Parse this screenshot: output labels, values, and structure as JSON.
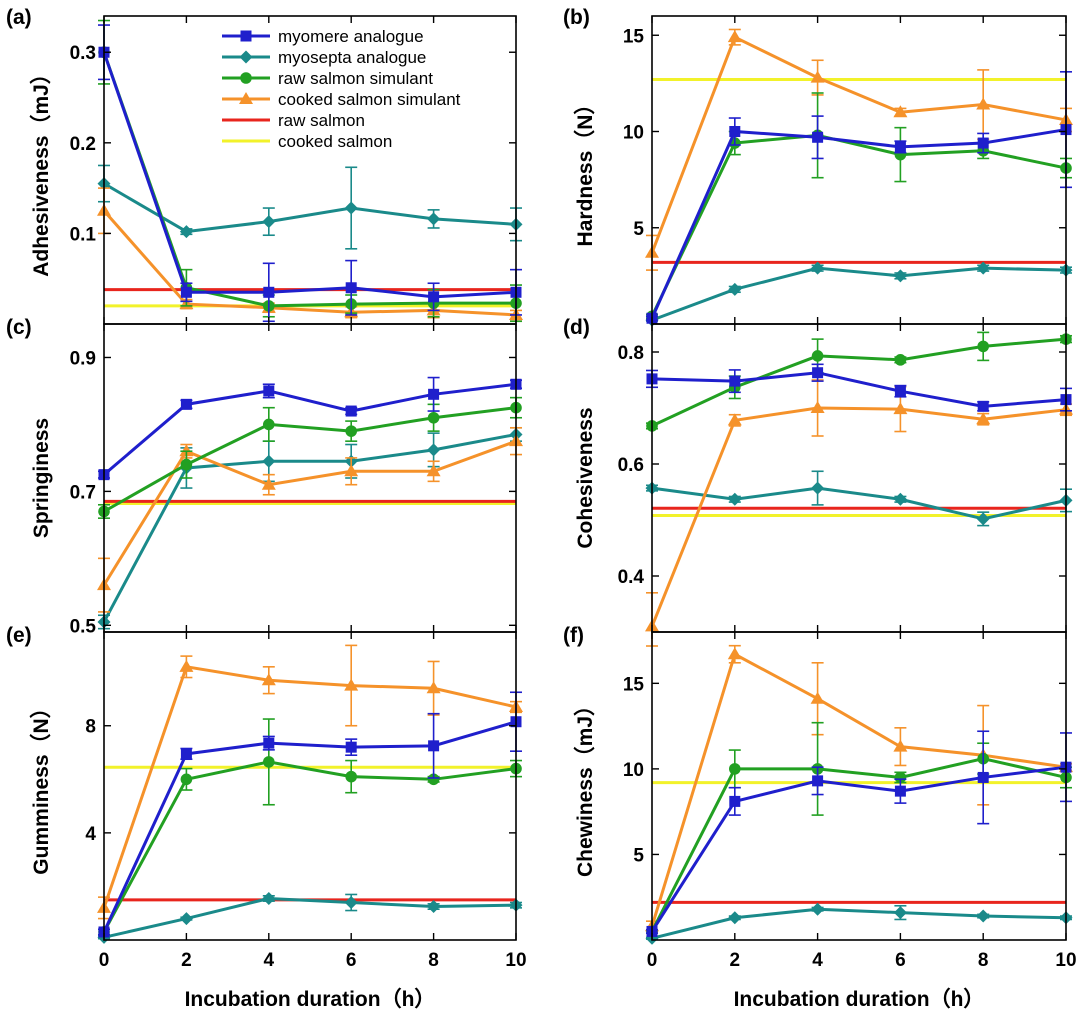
{
  "chart_data": {
    "type": "line",
    "x": [
      0,
      2,
      4,
      6,
      8,
      10
    ],
    "xlabel": "Incubation duration（h）",
    "xticks": [
      "0",
      "2",
      "4",
      "6",
      "8",
      "10"
    ],
    "legend": [
      {
        "name": "myomere analogue",
        "color": "#1f1fcc",
        "marker": "square"
      },
      {
        "name": "myosepta analogue",
        "color": "#1a8a8a",
        "marker": "diamond"
      },
      {
        "name": "raw salmon simulant",
        "color": "#22a022",
        "marker": "circle"
      },
      {
        "name": "cooked salmon simulant",
        "color": "#f5922a",
        "marker": "triangle"
      },
      {
        "name": "raw salmon",
        "color": "#e8251d",
        "marker": "line"
      },
      {
        "name": "cooked salmon",
        "color": "#f2f22a",
        "marker": "line"
      }
    ],
    "panels": [
      {
        "label": "(a)",
        "ylabel": "Adhesiveness（mJ）",
        "ylim": [
          0,
          0.34
        ],
        "yticks": [
          0.1,
          0.2,
          0.3
        ],
        "ytick_labels": [
          "0.1",
          "0.2",
          "0.3"
        ],
        "series": [
          {
            "values": [
              0.3,
              0.035,
              0.035,
              0.04,
              0.03,
              0.035
            ],
            "err": [
              0.03,
              0.01,
              0.032,
              0.03,
              0.015,
              0.025
            ]
          },
          {
            "values": [
              0.155,
              0.102,
              0.113,
              0.128,
              0.116,
              0.11
            ],
            "err": [
              0.02,
              0.003,
              0.015,
              0.045,
              0.01,
              0.018
            ]
          },
          {
            "values": [
              0.3,
              0.04,
              0.02,
              0.022,
              0.023,
              0.023
            ],
            "err": [
              0.035,
              0.02,
              0.012,
              0.01,
              0.015,
              0.02
            ]
          },
          {
            "values": [
              0.125,
              0.022,
              0.018,
              0.013,
              0.015,
              0.01
            ],
            "err": [
              0.025,
              0.005,
              0.005,
              0.006,
              0.008,
              0.005
            ]
          }
        ],
        "raw_ref": 0.038,
        "cooked_ref": 0.02
      },
      {
        "label": "(b)",
        "ylabel": "Hardness（N）",
        "ylim": [
          0,
          16
        ],
        "yticks": [
          5,
          10,
          15
        ],
        "ytick_labels": [
          "5",
          "10",
          "15"
        ],
        "series": [
          {
            "values": [
              0.3,
              10.0,
              9.7,
              9.2,
              9.4,
              10.1
            ],
            "err": [
              0.1,
              0.7,
              1.1,
              0.3,
              0.5,
              3.0
            ]
          },
          {
            "values": [
              0.2,
              1.8,
              2.9,
              2.5,
              2.9,
              2.8
            ],
            "err": [
              0.05,
              0.15,
              0.15,
              0.15,
              0.15,
              0.15
            ]
          },
          {
            "values": [
              0.4,
              9.4,
              9.8,
              8.8,
              9.0,
              8.1
            ],
            "err": [
              0.1,
              0.6,
              2.2,
              1.4,
              0.4,
              0.5
            ]
          },
          {
            "values": [
              3.7,
              14.9,
              12.8,
              11.0,
              11.4,
              10.6
            ],
            "err": [
              0.9,
              0.4,
              0.9,
              0.2,
              1.8,
              0.6
            ]
          }
        ],
        "raw_ref": 3.2,
        "cooked_ref": 12.7
      },
      {
        "label": "(c)",
        "ylabel": "Springiness",
        "ylim": [
          0.49,
          0.95
        ],
        "yticks": [
          0.5,
          0.7,
          0.9
        ],
        "ytick_labels": [
          "0.5",
          "0.7",
          "0.9"
        ],
        "series": [
          {
            "values": [
              0.725,
              0.83,
              0.85,
              0.82,
              0.845,
              0.86
            ],
            "err": [
              0.005,
              0.006,
              0.01,
              0.005,
              0.025,
              0.006
            ]
          },
          {
            "values": [
              0.505,
              0.735,
              0.745,
              0.745,
              0.762,
              0.785
            ],
            "err": [
              0.01,
              0.03,
              0.03,
              0.025,
              0.025,
              0.01
            ]
          },
          {
            "values": [
              0.67,
              0.74,
              0.8,
              0.79,
              0.81,
              0.825
            ],
            "err": [
              0.01,
              0.02,
              0.025,
              0.015,
              0.02,
              0.015
            ]
          },
          {
            "values": [
              0.56,
              0.76,
              0.71,
              0.73,
              0.73,
              0.775
            ],
            "err": [
              0.04,
              0.01,
              0.015,
              0.02,
              0.015,
              0.02
            ]
          }
        ],
        "raw_ref": 0.685,
        "cooked_ref": 0.682
      },
      {
        "label": "(d)",
        "ylabel": "Cohesiveness",
        "ylim": [
          0.3,
          0.85
        ],
        "yticks": [
          0.4,
          0.6,
          0.8
        ],
        "ytick_labels": [
          "0.4",
          "0.6",
          "0.8"
        ],
        "series": [
          {
            "values": [
              0.752,
              0.748,
              0.763,
              0.73,
              0.703,
              0.715
            ],
            "err": [
              0.015,
              0.02,
              0.015,
              0.01,
              0.008,
              0.02
            ]
          },
          {
            "values": [
              0.557,
              0.537,
              0.557,
              0.537,
              0.502,
              0.535
            ],
            "err": [
              0.005,
              0.005,
              0.03,
              0.005,
              0.012,
              0.02
            ]
          },
          {
            "values": [
              0.668,
              0.737,
              0.793,
              0.786,
              0.81,
              0.823
            ],
            "err": [
              0.005,
              0.02,
              0.03,
              0.005,
              0.025,
              0.006
            ]
          },
          {
            "values": [
              0.31,
              0.678,
              0.7,
              0.698,
              0.68,
              0.697
            ],
            "err": [
              0.06,
              0.01,
              0.05,
              0.04,
              0.01,
              0.01
            ]
          }
        ],
        "raw_ref": 0.521,
        "cooked_ref": 0.508
      },
      {
        "label": "(e)",
        "ylabel": "Gumminess（N）",
        "ylim": [
          0,
          11.5
        ],
        "yticks": [
          4,
          8
        ],
        "ytick_labels": [
          "4",
          "8"
        ],
        "series": [
          {
            "values": [
              0.3,
              6.95,
              7.35,
              7.2,
              7.25,
              8.15
            ],
            "err": [
              0.1,
              0.2,
              0.25,
              0.3,
              1.2,
              1.1
            ]
          },
          {
            "values": [
              0.1,
              0.8,
              1.55,
              1.4,
              1.25,
              1.3
            ],
            "err": [
              0.05,
              0.05,
              0.1,
              0.3,
              0.1,
              0.1
            ]
          },
          {
            "values": [
              0.3,
              6.0,
              6.65,
              6.1,
              6.0,
              6.4
            ],
            "err": [
              0.1,
              0.4,
              1.6,
              0.6,
              0.1,
              0.3
            ]
          },
          {
            "values": [
              1.2,
              10.2,
              9.7,
              9.5,
              9.4,
              8.7
            ],
            "err": [
              0.4,
              0.4,
              0.5,
              1.5,
              1.0,
              0.2
            ]
          }
        ],
        "raw_ref": 1.5,
        "cooked_ref": 6.45
      },
      {
        "label": "(f)",
        "ylabel": "Chewiness（mJ）",
        "ylim": [
          0,
          18
        ],
        "yticks": [
          5,
          10,
          15
        ],
        "ytick_labels": [
          "5",
          "10",
          "15"
        ],
        "series": [
          {
            "values": [
              0.5,
              8.1,
              9.3,
              8.7,
              9.5,
              10.1
            ],
            "err": [
              0.1,
              0.8,
              0.8,
              0.7,
              2.7,
              2.0
            ]
          },
          {
            "values": [
              0.1,
              1.3,
              1.8,
              1.6,
              1.4,
              1.3
            ],
            "err": [
              0.05,
              0.1,
              0.1,
              0.4,
              0.1,
              0.1
            ]
          },
          {
            "values": [
              0.5,
              10.0,
              10.0,
              9.5,
              10.6,
              9.5
            ],
            "err": [
              0.1,
              1.1,
              2.7,
              0.3,
              0.9,
              0.6
            ]
          },
          {
            "values": [
              0.8,
              16.7,
              14.1,
              11.3,
              10.8,
              10.1
            ],
            "err": [
              0.3,
              0.5,
              2.1,
              1.1,
              2.9,
              0.2
            ]
          }
        ],
        "raw_ref": 2.2,
        "cooked_ref": 9.2
      }
    ]
  }
}
